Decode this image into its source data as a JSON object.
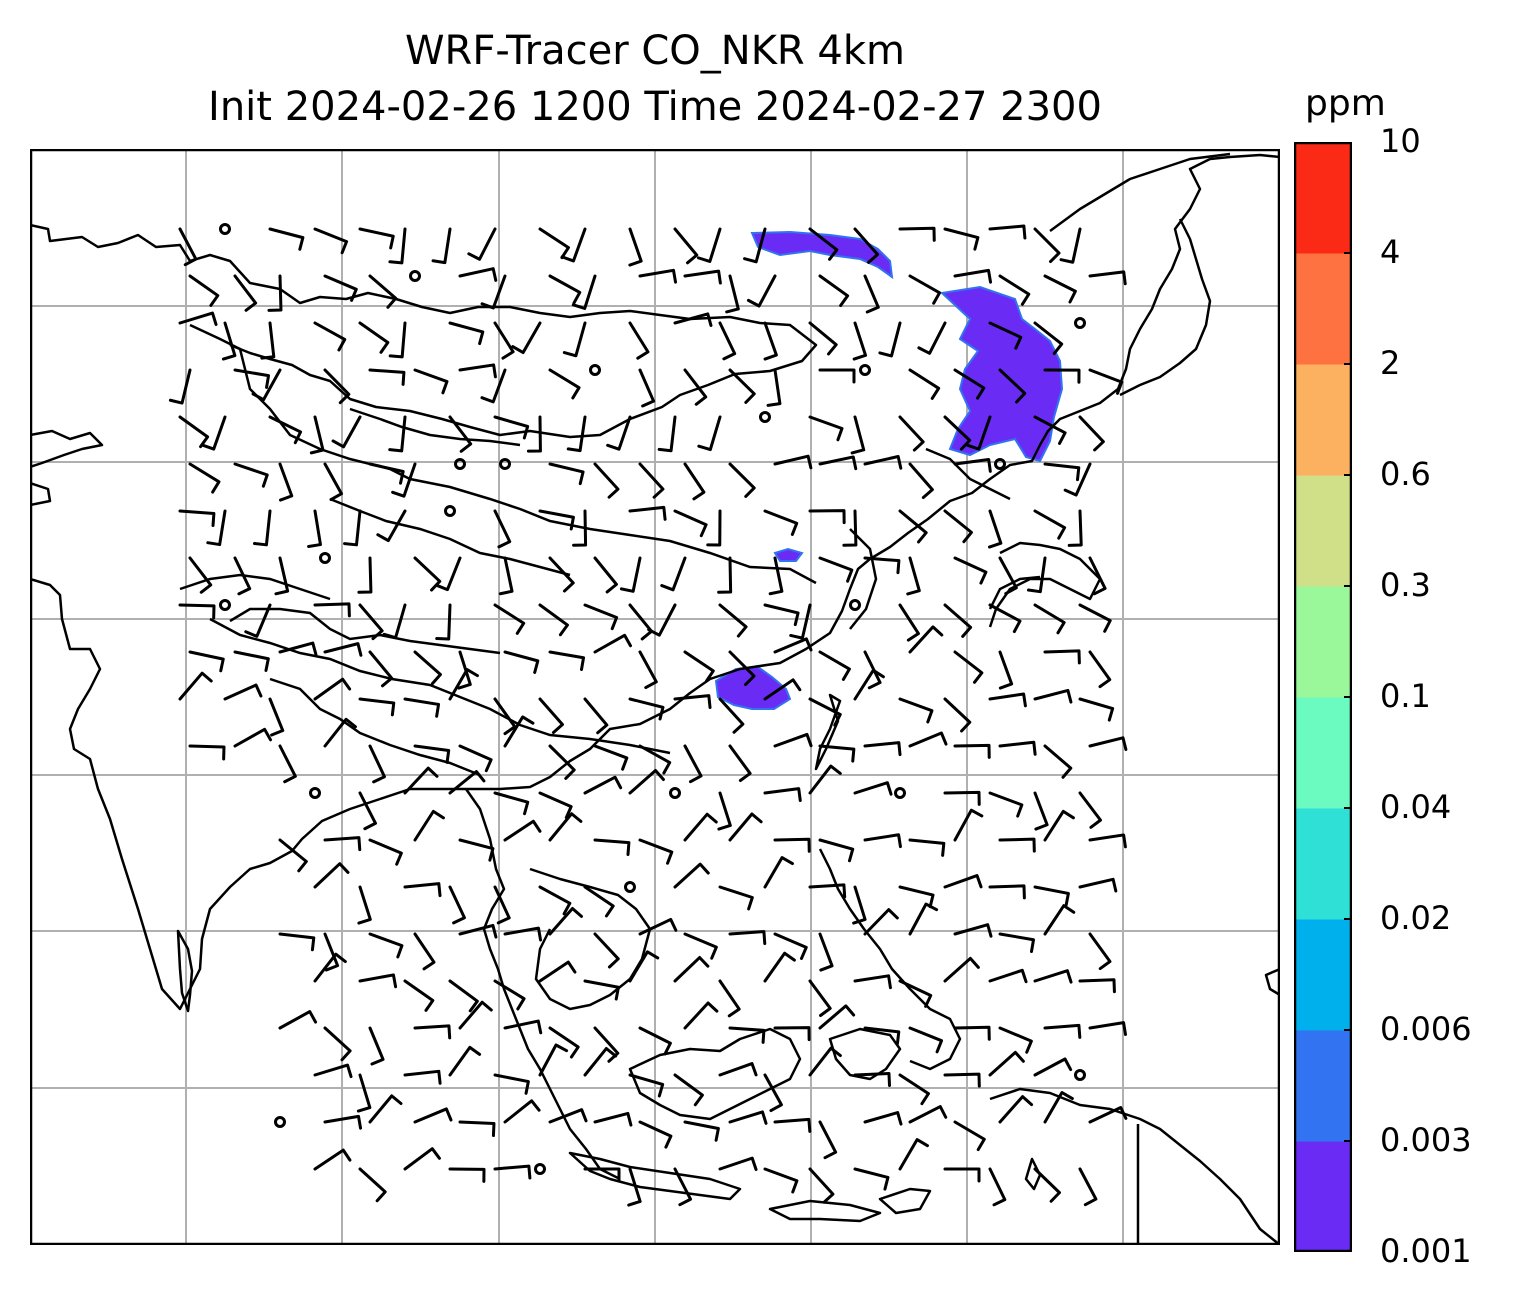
{
  "title": {
    "line1": "WRF-Tracer CO_NKR 4km",
    "line2": "Init 2024-02-26 1200 Time 2024-02-27 2300"
  },
  "colorbar": {
    "unit": "ppm",
    "ticks": [
      "10",
      "4",
      "2",
      "0.6",
      "0.3",
      "0.1",
      "0.04",
      "0.02",
      "0.006",
      "0.003",
      "0.001"
    ],
    "colors": [
      "#6a2cf5",
      "#3273f2",
      "#00b0ec",
      "#2fe0d6",
      "#6bfac0",
      "#9af79a",
      "#cfe088",
      "#fcb160",
      "#fd7240",
      "#fb2a17"
    ]
  },
  "map": {
    "gridlines": true,
    "coastlines": true,
    "plume_color": "#6a2cf5"
  }
}
